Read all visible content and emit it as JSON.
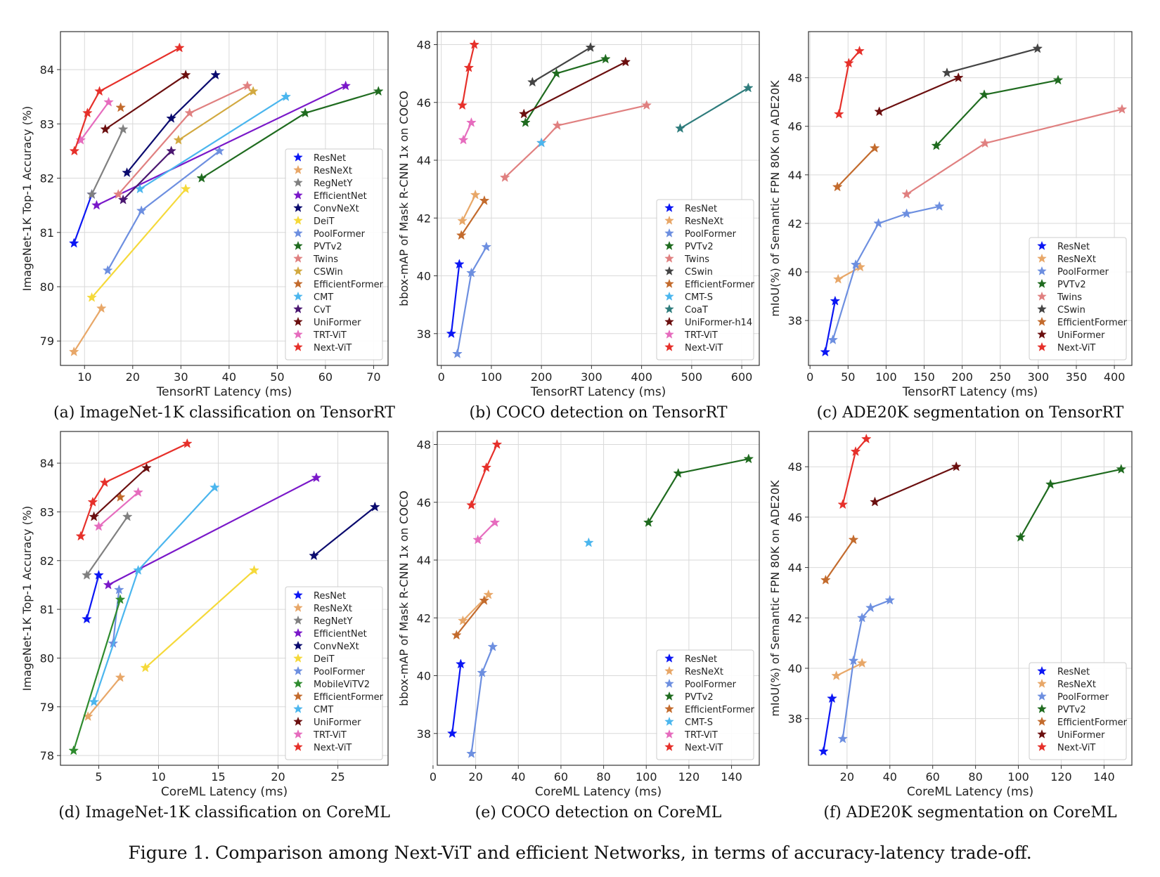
{
  "figure_caption": "Figure 1. Comparison among Next-ViT and efficient Networks, in terms of accuracy-latency trade-off.",
  "colors": {
    "ResNet": "#0b16f4",
    "ResNeXt": "#e8a768",
    "RegNetY": "#808080",
    "EfficientNet": "#7a18c9",
    "ConvNeXt": "#0a0a6e",
    "DeiT": "#f5d93a",
    "PoolFormer": "#6d8fe0",
    "PVTv2": "#1f6b1f",
    "MobileViTV2": "#2e8b2e",
    "Twins": "#e08080",
    "CSWin": "#d2a940",
    "EfficientFormer": "#c36b2d",
    "CMT": "#4bb6ee",
    "CMT-S": "#4bb6ee",
    "CoaT": "#2e7c7c",
    "CvT": "#4a1670",
    "UniFormer": "#6b0f0f",
    "UniFormer-h14": "#6b0f0f",
    "TRT-ViT": "#e66cbe",
    "Next-ViT": "#e6302a"
  },
  "chart_data": [
    {
      "type": "line",
      "caption": "(a) ImageNet-1K classification on TensorRT",
      "xlabel": "TensorRT Latency (ms)",
      "ylabel": "ImageNet-1K Top-1 Accuracy (%)",
      "xlim": [
        5,
        73
      ],
      "ylim": [
        78.55,
        84.7
      ],
      "xticks": [
        10,
        20,
        30,
        40,
        50,
        60,
        70
      ],
      "yticks": [
        79,
        80,
        81,
        82,
        83,
        84
      ],
      "legend_position": "lower-right",
      "series": [
        {
          "name": "ResNet",
          "points": [
            [
              7.8,
              80.8
            ],
            [
              11.5,
              81.7
            ]
          ]
        },
        {
          "name": "ResNeXt",
          "points": [
            [
              7.8,
              78.8
            ],
            [
              13.5,
              79.6
            ]
          ]
        },
        {
          "name": "RegNetY",
          "points": [
            [
              11.5,
              81.7
            ],
            [
              18.0,
              82.9
            ]
          ]
        },
        {
          "name": "EfficientNet",
          "points": [
            [
              12.5,
              81.5
            ],
            [
              64.2,
              83.7
            ]
          ]
        },
        {
          "name": "ConvNeXt",
          "points": [
            [
              18.8,
              82.1
            ],
            [
              28.0,
              83.1
            ],
            [
              37.2,
              83.9
            ]
          ]
        },
        {
          "name": "DeiT",
          "points": [
            [
              11.5,
              79.8
            ],
            [
              31.0,
              81.8
            ]
          ]
        },
        {
          "name": "PoolFormer",
          "points": [
            [
              14.8,
              80.3
            ],
            [
              21.8,
              81.4
            ],
            [
              38.0,
              82.5
            ]
          ]
        },
        {
          "name": "PVTv2",
          "points": [
            [
              34.3,
              82.0
            ],
            [
              55.8,
              83.2
            ],
            [
              71.0,
              83.6
            ]
          ]
        },
        {
          "name": "Twins",
          "points": [
            [
              17.0,
              81.7
            ],
            [
              31.8,
              83.2
            ],
            [
              43.8,
              83.7
            ]
          ]
        },
        {
          "name": "CSWin",
          "points": [
            [
              29.5,
              82.7
            ],
            [
              45.0,
              83.6
            ]
          ]
        },
        {
          "name": "EfficientFormer",
          "points": [
            [
              17.5,
              83.3
            ]
          ]
        },
        {
          "name": "CMT",
          "points": [
            [
              21.5,
              81.8
            ],
            [
              51.8,
              83.5
            ]
          ]
        },
        {
          "name": "CvT",
          "points": [
            [
              18.0,
              81.6
            ],
            [
              28.0,
              82.5
            ]
          ]
        },
        {
          "name": "UniFormer",
          "points": [
            [
              14.3,
              82.9
            ],
            [
              31.0,
              83.9
            ]
          ]
        },
        {
          "name": "TRT-ViT",
          "points": [
            [
              9.2,
              82.7
            ],
            [
              15.0,
              83.4
            ]
          ]
        },
        {
          "name": "Next-ViT",
          "points": [
            [
              7.9,
              82.5
            ],
            [
              10.6,
              83.2
            ],
            [
              13.1,
              83.6
            ],
            [
              29.7,
              84.4
            ]
          ]
        }
      ]
    },
    {
      "type": "line",
      "caption": "(b) COCO detection on TensorRT",
      "xlabel": "TensorRT Latency (ms)",
      "ylabel": "bbox-mAP of Mask R-CNN 1x on COCO",
      "xlim": [
        -8,
        635
      ],
      "ylim": [
        36.9,
        48.45
      ],
      "xticks": [
        0,
        100,
        200,
        300,
        400,
        500,
        600
      ],
      "yticks": [
        38,
        40,
        42,
        44,
        46,
        48
      ],
      "legend_position": "lower-right",
      "series": [
        {
          "name": "ResNet",
          "points": [
            [
              20,
              38.0
            ],
            [
              36,
              40.4
            ]
          ]
        },
        {
          "name": "ResNeXt",
          "points": [
            [
              42,
              41.9
            ],
            [
              68,
              42.8
            ]
          ]
        },
        {
          "name": "PoolFormer",
          "points": [
            [
              32,
              37.3
            ],
            [
              60,
              40.1
            ],
            [
              90,
              41.0
            ]
          ]
        },
        {
          "name": "PVTv2",
          "points": [
            [
              168,
              45.3
            ],
            [
              230,
              47.0
            ],
            [
              328,
              47.5
            ]
          ]
        },
        {
          "name": "Twins",
          "points": [
            [
              127,
              43.4
            ],
            [
              200,
              44.6
            ],
            [
              232,
              45.2
            ],
            [
              410,
              45.9
            ]
          ]
        },
        {
          "name": "CSwin",
          "points": [
            [
              182,
              46.7
            ],
            [
              298,
              47.9
            ]
          ]
        },
        {
          "name": "EfficientFormer",
          "points": [
            [
              40,
              41.4
            ],
            [
              86,
              42.6
            ]
          ]
        },
        {
          "name": "CMT-S",
          "points": [
            [
              200,
              44.6
            ]
          ]
        },
        {
          "name": "CoaT",
          "points": [
            [
              477,
              45.1
            ],
            [
              613,
              46.5
            ]
          ]
        },
        {
          "name": "UniFormer-h14",
          "points": [
            [
              165,
              45.6
            ],
            [
              368,
              47.4
            ]
          ]
        },
        {
          "name": "TRT-ViT",
          "points": [
            [
              44,
              44.7
            ],
            [
              60,
              45.3
            ]
          ]
        },
        {
          "name": "Next-ViT",
          "points": [
            [
              42,
              45.9
            ],
            [
              55,
              47.2
            ],
            [
              66,
              48.0
            ]
          ]
        }
      ]
    },
    {
      "type": "line",
      "caption": "(c) ADE20K segmentation on TensorRT",
      "xlabel": "TensorRT Latency (ms)",
      "ylabel": "mIoU(%) of Semantic FPN 80K on ADE20K",
      "xlim": [
        -2,
        423
      ],
      "ylim": [
        36.15,
        49.9
      ],
      "xticks": [
        0,
        50,
        100,
        150,
        200,
        250,
        300,
        350,
        400
      ],
      "yticks": [
        38,
        40,
        42,
        44,
        46,
        48
      ],
      "legend_position": "lower-right",
      "series": [
        {
          "name": "ResNet",
          "points": [
            [
              20,
              36.7
            ],
            [
              33,
              38.8
            ]
          ]
        },
        {
          "name": "ResNeXt",
          "points": [
            [
              37,
              39.7
            ],
            [
              66,
              40.2
            ]
          ]
        },
        {
          "name": "PoolFormer",
          "points": [
            [
              30,
              37.2
            ],
            [
              60,
              40.3
            ],
            [
              90,
              42.0
            ],
            [
              127,
              42.4
            ],
            [
              170,
              42.7
            ]
          ]
        },
        {
          "name": "PVTv2",
          "points": [
            [
              166,
              45.2
            ],
            [
              229,
              47.3
            ],
            [
              326,
              47.9
            ]
          ]
        },
        {
          "name": "Twins",
          "points": [
            [
              127,
              43.2
            ],
            [
              230,
              45.3
            ],
            [
              410,
              46.7
            ]
          ]
        },
        {
          "name": "CSwin",
          "points": [
            [
              180,
              48.2
            ],
            [
              299,
              49.2
            ]
          ]
        },
        {
          "name": "EfficientFormer",
          "points": [
            [
              36,
              43.5
            ],
            [
              85,
              45.1
            ]
          ]
        },
        {
          "name": "UniFormer",
          "points": [
            [
              91,
              46.6
            ],
            [
              195,
              48.0
            ]
          ]
        },
        {
          "name": "Next-ViT",
          "points": [
            [
              38,
              46.5
            ],
            [
              51,
              48.6
            ],
            [
              65,
              49.1
            ]
          ]
        }
      ]
    },
    {
      "type": "line",
      "caption": "(d) ImageNet-1K classification on CoreML",
      "xlabel": "CoreML Latency (ms)",
      "ylabel": "ImageNet-1K Top-1 Accuracy (%)",
      "xlim": [
        1.8,
        29.2
      ],
      "ylim": [
        77.8,
        84.65
      ],
      "xticks": [
        5,
        10,
        15,
        20,
        25
      ],
      "yticks": [
        78,
        79,
        80,
        81,
        82,
        83,
        84
      ],
      "legend_position": "lower-right",
      "series": [
        {
          "name": "ResNet",
          "points": [
            [
              4.0,
              80.8
            ],
            [
              5.0,
              81.7
            ]
          ]
        },
        {
          "name": "ResNeXt",
          "points": [
            [
              4.1,
              78.8
            ],
            [
              6.8,
              79.6
            ]
          ]
        },
        {
          "name": "RegNetY",
          "points": [
            [
              4.0,
              81.7
            ],
            [
              7.4,
              82.9
            ]
          ]
        },
        {
          "name": "EfficientNet",
          "points": [
            [
              5.8,
              81.5
            ],
            [
              23.2,
              83.7
            ]
          ]
        },
        {
          "name": "ConvNeXt",
          "points": [
            [
              23.0,
              82.1
            ],
            [
              28.1,
              83.1
            ]
          ]
        },
        {
          "name": "DeiT",
          "points": [
            [
              8.9,
              79.8
            ],
            [
              18.0,
              81.8
            ]
          ]
        },
        {
          "name": "PoolFormer",
          "points": [
            [
              6.2,
              80.3
            ],
            [
              6.7,
              81.4
            ]
          ]
        },
        {
          "name": "MobileViTV2",
          "points": [
            [
              2.9,
              78.1
            ],
            [
              6.8,
              81.2
            ]
          ]
        },
        {
          "name": "EfficientFormer",
          "points": [
            [
              6.8,
              83.3
            ]
          ]
        },
        {
          "name": "CMT",
          "points": [
            [
              4.6,
              79.1
            ],
            [
              8.3,
              81.8
            ],
            [
              14.7,
              83.5
            ]
          ]
        },
        {
          "name": "UniFormer",
          "points": [
            [
              4.6,
              82.9
            ],
            [
              9.0,
              83.9
            ]
          ]
        },
        {
          "name": "TRT-ViT",
          "points": [
            [
              5.0,
              82.7
            ],
            [
              8.3,
              83.4
            ]
          ]
        },
        {
          "name": "Next-ViT",
          "points": [
            [
              3.5,
              82.5
            ],
            [
              4.5,
              83.2
            ],
            [
              5.5,
              83.6
            ],
            [
              12.4,
              84.4
            ]
          ]
        }
      ]
    },
    {
      "type": "line",
      "caption": "(e) COCO detection on CoreML",
      "xlabel": "CoreML Latency (ms)",
      "ylabel": "bbox-mAP of Mask R-CNN 1x on COCO",
      "xlim": [
        2,
        153
      ],
      "ylim": [
        36.9,
        48.45
      ],
      "xticks": [
        0,
        20,
        40,
        60,
        80,
        100,
        120,
        140
      ],
      "yticks": [
        38,
        40,
        42,
        44,
        46,
        48
      ],
      "legend_position": "lower-right",
      "series": [
        {
          "name": "ResNet",
          "points": [
            [
              9,
              38.0
            ],
            [
              13,
              40.4
            ]
          ]
        },
        {
          "name": "ResNeXt",
          "points": [
            [
              14,
              41.9
            ],
            [
              26,
              42.8
            ]
          ]
        },
        {
          "name": "PoolFormer",
          "points": [
            [
              18,
              37.3
            ],
            [
              23,
              40.1
            ],
            [
              28,
              41.0
            ]
          ]
        },
        {
          "name": "PVTv2",
          "points": [
            [
              101,
              45.3
            ],
            [
              115,
              47.0
            ],
            [
              148,
              47.5
            ]
          ]
        },
        {
          "name": "EfficientFormer",
          "points": [
            [
              11,
              41.4
            ],
            [
              24,
              42.6
            ]
          ]
        },
        {
          "name": "CMT-S",
          "points": [
            [
              73,
              44.6
            ]
          ]
        },
        {
          "name": "TRT-ViT",
          "points": [
            [
              21,
              44.7
            ],
            [
              29,
              45.3
            ]
          ]
        },
        {
          "name": "Next-ViT",
          "points": [
            [
              18,
              45.9
            ],
            [
              25,
              47.2
            ],
            [
              30,
              48.0
            ]
          ]
        }
      ]
    },
    {
      "type": "line",
      "caption": "(f) ADE20K segmentation on CoreML",
      "xlabel": "CoreML Latency (ms)",
      "ylabel": "mIoU(%) of Semantic FPN 80K on ADE20K",
      "xlim": [
        2,
        153
      ],
      "ylim": [
        36.15,
        49.4
      ],
      "xticks": [
        20,
        40,
        60,
        80,
        100,
        120,
        140
      ],
      "yticks": [
        38,
        40,
        42,
        44,
        46,
        48
      ],
      "legend_position": "lower-right",
      "series": [
        {
          "name": "ResNet",
          "points": [
            [
              9,
              36.7
            ],
            [
              13,
              38.8
            ]
          ]
        },
        {
          "name": "ResNeXt",
          "points": [
            [
              15,
              39.7
            ],
            [
              27,
              40.2
            ]
          ]
        },
        {
          "name": "PoolFormer",
          "points": [
            [
              18,
              37.2
            ],
            [
              23,
              40.3
            ],
            [
              27,
              42.0
            ],
            [
              31,
              42.4
            ],
            [
              40,
              42.7
            ]
          ]
        },
        {
          "name": "PVTv2",
          "points": [
            [
              101,
              45.2
            ],
            [
              115,
              47.3
            ],
            [
              148,
              47.9
            ]
          ]
        },
        {
          "name": "EfficientFormer",
          "points": [
            [
              10,
              43.5
            ],
            [
              23,
              45.1
            ]
          ]
        },
        {
          "name": "UniFormer",
          "points": [
            [
              33,
              46.6
            ],
            [
              71,
              48.0
            ]
          ]
        },
        {
          "name": "Next-ViT",
          "points": [
            [
              18,
              46.5
            ],
            [
              24,
              48.6
            ],
            [
              29,
              49.1
            ]
          ]
        }
      ]
    }
  ]
}
